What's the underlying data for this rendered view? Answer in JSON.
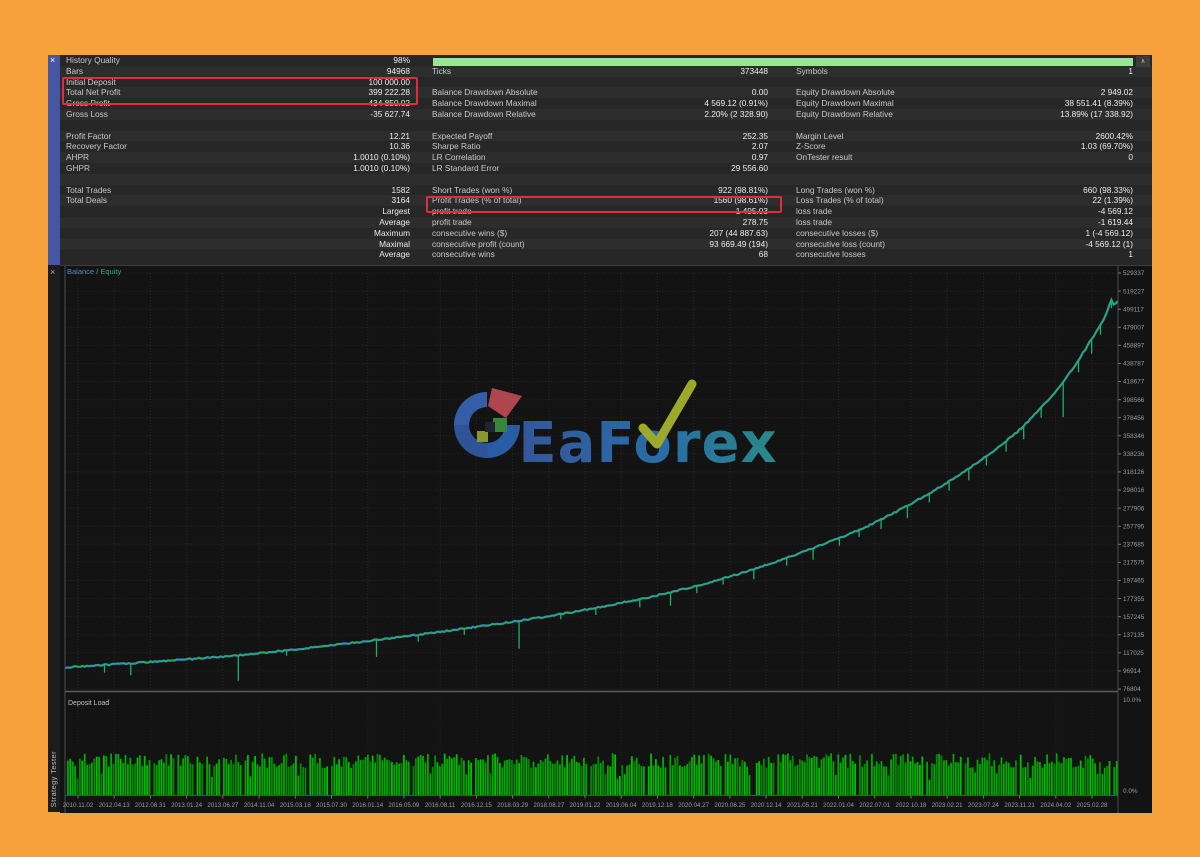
{
  "window": {
    "panel_title": "Strategy Tester"
  },
  "icons": {
    "close": "×",
    "scroll_up": "∧"
  },
  "colors": {
    "frame_orange": "#F7A13C",
    "highlight_red": "#E22B3D",
    "quality_green": "#95E695",
    "balance_blue": "#3F86C9",
    "equity_green": "#1FB060",
    "deposit_green": "#00A800",
    "rail_blue": "#4656A2"
  },
  "legend": {
    "balance": "Balance",
    "separator": " / ",
    "equity": "Equity"
  },
  "watermark": {
    "text": "EaForex"
  },
  "stats": {
    "quality_pct": "98%",
    "rows": [
      [
        "History Quality",
        "98%",
        "",
        "",
        "",
        ""
      ],
      [
        "Bars",
        "94968",
        "Ticks",
        "373448",
        "Symbols",
        "1"
      ],
      [
        "Initial Deposit",
        "100 000.00",
        "",
        "",
        "",
        ""
      ],
      [
        "Total Net Profit",
        "399 222.28",
        "Balance Drawdown Absolute",
        "0.00",
        "Equity Drawdown Absolute",
        "2 949.02"
      ],
      [
        "Gross Profit",
        "434 850.02",
        "Balance Drawdown Maximal",
        "4 569.12 (0.91%)",
        "Equity Drawdown Maximal",
        "38 551.41 (8.39%)"
      ],
      [
        "Gross Loss",
        "-35 627.74",
        "Balance Drawdown Relative",
        "2.20% (2 328.90)",
        "Equity Drawdown Relative",
        "13.89% (17 338.92)"
      ],
      [
        "",
        "",
        "",
        "",
        "",
        ""
      ],
      [
        "Profit Factor",
        "12.21",
        "Expected Payoff",
        "252.35",
        "Margin Level",
        "2600.42%"
      ],
      [
        "Recovery Factor",
        "10.36",
        "Sharpe Ratio",
        "2.07",
        "Z-Score",
        "1.03 (69.70%)"
      ],
      [
        "AHPR",
        "1.0010 (0.10%)",
        "LR Correlation",
        "0.97",
        "OnTester result",
        "0"
      ],
      [
        "GHPR",
        "1.0010 (0.10%)",
        "LR Standard Error",
        "29 556.60",
        "",
        ""
      ],
      [
        "",
        "",
        "",
        "",
        "",
        ""
      ],
      [
        "Total Trades",
        "1582",
        "Short Trades (won %)",
        "922 (98.81%)",
        "Long Trades (won %)",
        "660 (98.33%)"
      ],
      [
        "Total Deals",
        "3164",
        "Profit Trades (% of total)",
        "1560 (98.61%)",
        "Loss Trades (% of total)",
        "22 (1.39%)"
      ],
      [
        "",
        "Largest",
        "profit trade",
        "1 495.03",
        "loss trade",
        "-4 569.12"
      ],
      [
        "",
        "Average",
        "profit trade",
        "278.75",
        "loss trade",
        "-1 619.44"
      ],
      [
        "",
        "Maximum",
        "consecutive wins ($)",
        "207 (44 887.63)",
        "consecutive losses ($)",
        "1 (-4 569.12)"
      ],
      [
        "",
        "Maximal",
        "consecutive profit (count)",
        "93 669.49 (194)",
        "consecutive loss (count)",
        "-4 569.12 (1)"
      ],
      [
        "",
        "Average",
        "consecutive wins",
        "68",
        "consecutive losses",
        "1"
      ]
    ]
  },
  "chart_data": {
    "type": "line",
    "title": "",
    "legend": [
      "Balance",
      "Equity"
    ],
    "legend_position": "top-left",
    "grid": true,
    "ylim": [
      76804,
      529337
    ],
    "y_tick_labels": [
      "529337",
      "519227",
      "499117",
      "479007",
      "458897",
      "438787",
      "418677",
      "398566",
      "378456",
      "358346",
      "338236",
      "318126",
      "298016",
      "277906",
      "257795",
      "237685",
      "217575",
      "197465",
      "177355",
      "157245",
      "137135",
      "117025",
      "96914",
      "76804"
    ],
    "x_tick_labels": [
      "2010.11.02",
      "2012.04.13",
      "2012.08.31",
      "2013.01.24",
      "2013.06.27",
      "2014.11.04",
      "2015.03.18",
      "2015.07.30",
      "2016.01.14",
      "2016.05.09",
      "2016.08.11",
      "2016.12.15",
      "2018.03.29",
      "2018.08.27",
      "2019.01.22",
      "2019.06.04",
      "2019.12.18",
      "2020.04.27",
      "2020.08.25",
      "2020.12.14",
      "2021.05.21",
      "2022.01.04",
      "2022.07.01",
      "2022.10.18",
      "2023.02.21",
      "2023.07.24",
      "2023.11.21",
      "2024.04.02",
      "2025.02.28"
    ],
    "series": [
      {
        "name": "Balance",
        "points": [
          [
            0,
            100000
          ],
          [
            0.03,
            102500
          ],
          [
            0.06,
            104500
          ],
          [
            0.09,
            107000
          ],
          [
            0.12,
            109500
          ],
          [
            0.16,
            113000
          ],
          [
            0.2,
            117500
          ],
          [
            0.24,
            122500
          ],
          [
            0.28,
            128000
          ],
          [
            0.32,
            133500
          ],
          [
            0.36,
            139500
          ],
          [
            0.4,
            146000
          ],
          [
            0.44,
            152500
          ],
          [
            0.48,
            160000
          ],
          [
            0.52,
            168500
          ],
          [
            0.56,
            178000
          ],
          [
            0.6,
            189000
          ],
          [
            0.64,
            202000
          ],
          [
            0.68,
            217000
          ],
          [
            0.72,
            234000
          ],
          [
            0.76,
            252500
          ],
          [
            0.79,
            270000
          ],
          [
            0.82,
            289000
          ],
          [
            0.85,
            310000
          ],
          [
            0.88,
            334000
          ],
          [
            0.905,
            357000
          ],
          [
            0.925,
            380000
          ],
          [
            0.945,
            406000
          ],
          [
            0.96,
            430000
          ],
          [
            0.972,
            452000
          ],
          [
            0.982,
            470000
          ],
          [
            0.988,
            483000
          ],
          [
            0.992,
            495000
          ],
          [
            0.9945,
            502000
          ],
          [
            0.9965,
            492500
          ],
          [
            0.998,
            497000
          ],
          [
            1,
            499222
          ]
        ]
      },
      {
        "name": "Equity",
        "follows": "Balance",
        "drawdown_spikes": [
          [
            0.038,
            9000
          ],
          [
            0.062,
            12500
          ],
          [
            0.164,
            27000
          ],
          [
            0.21,
            6000
          ],
          [
            0.295,
            19000
          ],
          [
            0.335,
            7000
          ],
          [
            0.38,
            6500
          ],
          [
            0.432,
            30000
          ],
          [
            0.47,
            6000
          ],
          [
            0.505,
            7500
          ],
          [
            0.545,
            9000
          ],
          [
            0.575,
            14000
          ],
          [
            0.6,
            8000
          ],
          [
            0.625,
            7000
          ],
          [
            0.655,
            10500
          ],
          [
            0.685,
            8500
          ],
          [
            0.71,
            12000
          ],
          [
            0.735,
            9000
          ],
          [
            0.755,
            8000
          ],
          [
            0.775,
            11000
          ],
          [
            0.8,
            13500
          ],
          [
            0.82,
            9500
          ],
          [
            0.84,
            10500
          ],
          [
            0.858,
            12500
          ],
          [
            0.875,
            10000
          ],
          [
            0.893,
            11000
          ],
          [
            0.91,
            14500
          ],
          [
            0.928,
            11500
          ],
          [
            0.947,
            38500
          ],
          [
            0.962,
            13000
          ],
          [
            0.974,
            16000
          ],
          [
            0.984,
            11000
          ],
          [
            0.993,
            9000
          ]
        ]
      }
    ],
    "deposit_load": {
      "label": "Deposit Load",
      "axis_top": "10.0%",
      "axis_bottom": "0.0%",
      "bar_pct_range": [
        2.8,
        4.3
      ]
    }
  }
}
